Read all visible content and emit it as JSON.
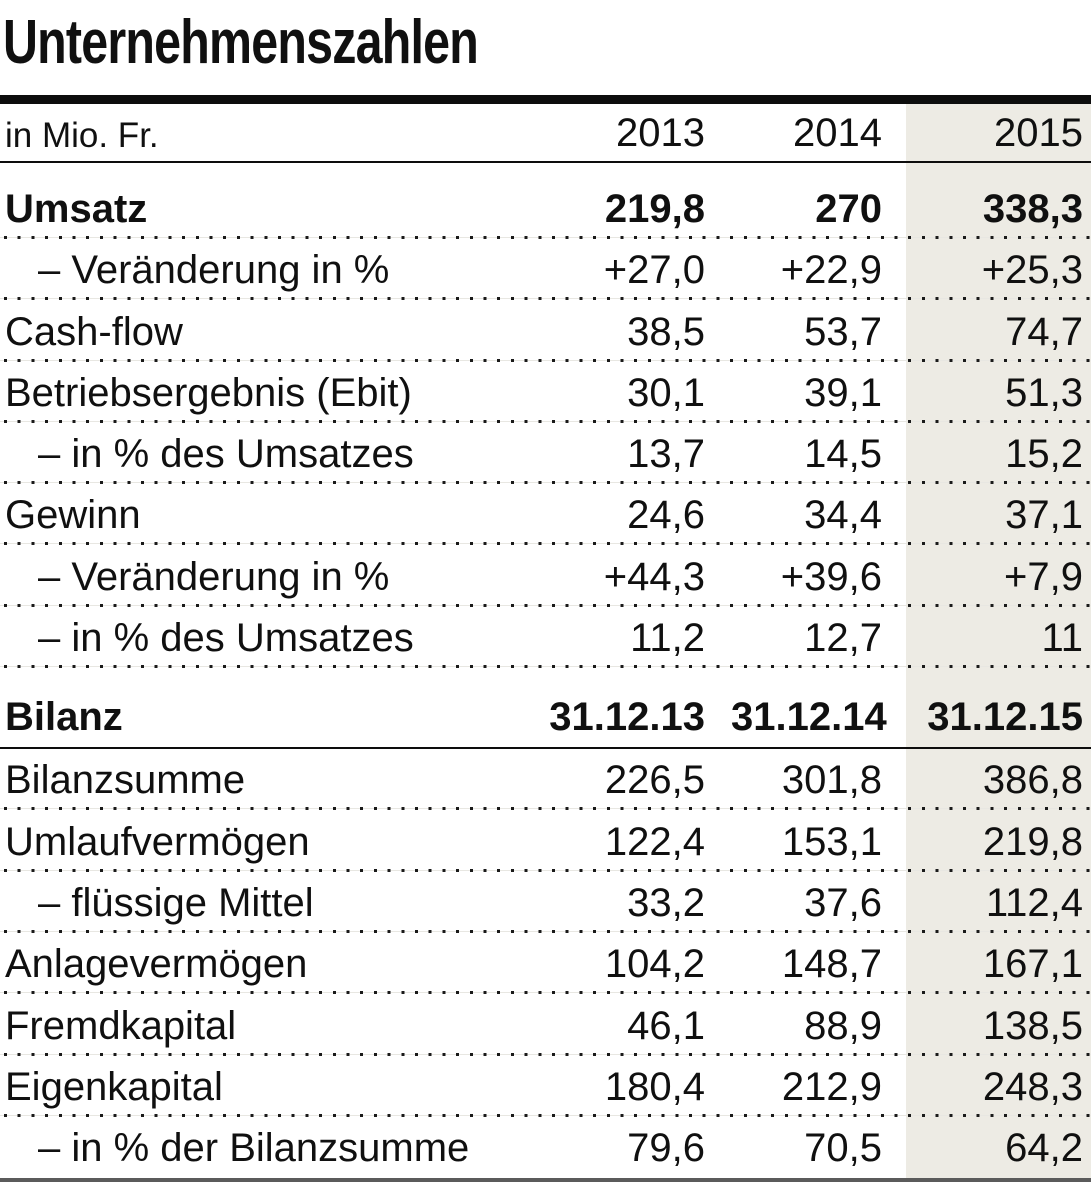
{
  "title": "Unternehmenszahlen",
  "chart_data": {
    "type": "table",
    "title": "Unternehmenszahlen",
    "unit_label": "in Mio. Fr.",
    "columns": [
      "2013",
      "2014",
      "2015"
    ],
    "highlighted_column": "2015",
    "rows": [
      {
        "label": "Umsatz",
        "bold": true,
        "tall": true,
        "values": [
          "219,8",
          "270",
          "338,3"
        ]
      },
      {
        "label": "– Veränderung in %",
        "indent": true,
        "values": [
          "+27,0",
          "+22,9",
          "+25,3"
        ]
      },
      {
        "label": "Cash-flow",
        "values": [
          "38,5",
          "53,7",
          "74,7"
        ]
      },
      {
        "label": "Betriebsergebnis (Ebit)",
        "values": [
          "30,1",
          "39,1",
          "51,3"
        ]
      },
      {
        "label": "– in % des Umsatzes",
        "indent": true,
        "values": [
          "13,7",
          "14,5",
          "15,2"
        ]
      },
      {
        "label": "Gewinn",
        "values": [
          "24,6",
          "34,4",
          "37,1"
        ]
      },
      {
        "label": "– Veränderung in %",
        "indent": true,
        "values": [
          "+44,3",
          "+39,6",
          "+7,9"
        ]
      },
      {
        "label": "– in % des Umsatzes",
        "indent": true,
        "values": [
          "11,2",
          "12,7",
          "11"
        ]
      },
      {
        "label": "Bilanz",
        "bold": true,
        "section": true,
        "values": [
          "31.12.13",
          "31.12.14",
          "31.12.15"
        ]
      },
      {
        "label": "Bilanzsumme",
        "values": [
          "226,5",
          "301,8",
          "386,8"
        ]
      },
      {
        "label": "Umlaufvermögen",
        "values": [
          "122,4",
          "153,1",
          "219,8"
        ]
      },
      {
        "label": "– flüssige Mittel",
        "indent": true,
        "values": [
          "33,2",
          "37,6",
          "112,4"
        ]
      },
      {
        "label": "Anlagevermögen",
        "values": [
          "104,2",
          "148,7",
          "167,1"
        ]
      },
      {
        "label": "Fremdkapital",
        "values": [
          "46,1",
          "88,9",
          "138,5"
        ]
      },
      {
        "label": "Eigenkapital",
        "values": [
          "180,4",
          "212,9",
          "248,3"
        ]
      },
      {
        "label": "– in % der Bilanzsumme",
        "indent": true,
        "values": [
          "79,6",
          "70,5",
          "64,2"
        ]
      }
    ]
  },
  "colors": {
    "highlight_bg": "#edebe4",
    "text": "#101010",
    "rule_black": "#0d0d0d",
    "rule_bottom": "#5b5b5b"
  }
}
